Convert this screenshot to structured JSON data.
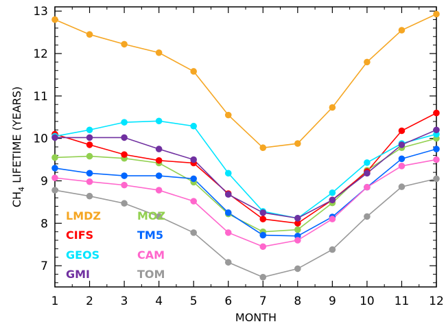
{
  "chart_data": {
    "type": "line",
    "title": "",
    "xlabel": "MONTH",
    "ylabel": {
      "prefix": "CH",
      "subscript": "4",
      "suffix": " LIFETIME (YEARS)"
    },
    "x": [
      1,
      2,
      3,
      4,
      5,
      6,
      7,
      8,
      9,
      10,
      11,
      12
    ],
    "xlim": [
      1,
      12
    ],
    "ylim": [
      6.5,
      13.1
    ],
    "xticks": [
      1,
      2,
      3,
      4,
      5,
      6,
      7,
      8,
      9,
      10,
      11,
      12
    ],
    "yticks": [
      7,
      8,
      9,
      10,
      11,
      12,
      13
    ],
    "grid": false,
    "legend_position": "bottom-left",
    "series": [
      {
        "name": "LMDZ",
        "color": "#f5a623",
        "values": [
          12.8,
          12.45,
          12.22,
          12.02,
          11.58,
          10.55,
          9.78,
          9.88,
          10.73,
          11.8,
          12.55,
          12.93
        ]
      },
      {
        "name": "MOZ",
        "color": "#92d050",
        "values": [
          9.55,
          9.58,
          9.53,
          9.42,
          8.97,
          8.22,
          7.8,
          7.85,
          8.48,
          9.25,
          9.78,
          10.0
        ]
      },
      {
        "name": "CIFS",
        "color": "#ff0000",
        "values": [
          10.1,
          9.85,
          9.62,
          9.48,
          9.42,
          8.7,
          8.1,
          8.0,
          8.55,
          9.22,
          10.18,
          10.6
        ]
      },
      {
        "name": "TM5",
        "color": "#0066ff",
        "values": [
          9.3,
          9.18,
          9.12,
          9.12,
          9.05,
          8.25,
          7.72,
          7.7,
          8.15,
          8.85,
          9.52,
          9.75
        ]
      },
      {
        "name": "GEOS",
        "color": "#00e5ff",
        "values": [
          10.05,
          10.2,
          10.38,
          10.41,
          10.29,
          9.18,
          8.28,
          8.12,
          8.72,
          9.43,
          9.88,
          10.1
        ]
      },
      {
        "name": "CAM",
        "color": "#ff66cc",
        "values": [
          9.07,
          8.98,
          8.9,
          8.78,
          8.52,
          7.78,
          7.45,
          7.6,
          8.1,
          8.85,
          9.35,
          9.5
        ]
      },
      {
        "name": "GMI",
        "color": "#7030a0",
        "values": [
          10.02,
          10.02,
          10.02,
          9.75,
          9.5,
          8.68,
          8.25,
          8.12,
          8.55,
          9.18,
          9.85,
          10.2
        ]
      },
      {
        "name": "TOM",
        "color": "#999999",
        "values": [
          8.78,
          8.64,
          8.47,
          8.16,
          7.78,
          7.08,
          6.73,
          6.93,
          7.38,
          8.16,
          8.86,
          9.05
        ]
      }
    ]
  }
}
